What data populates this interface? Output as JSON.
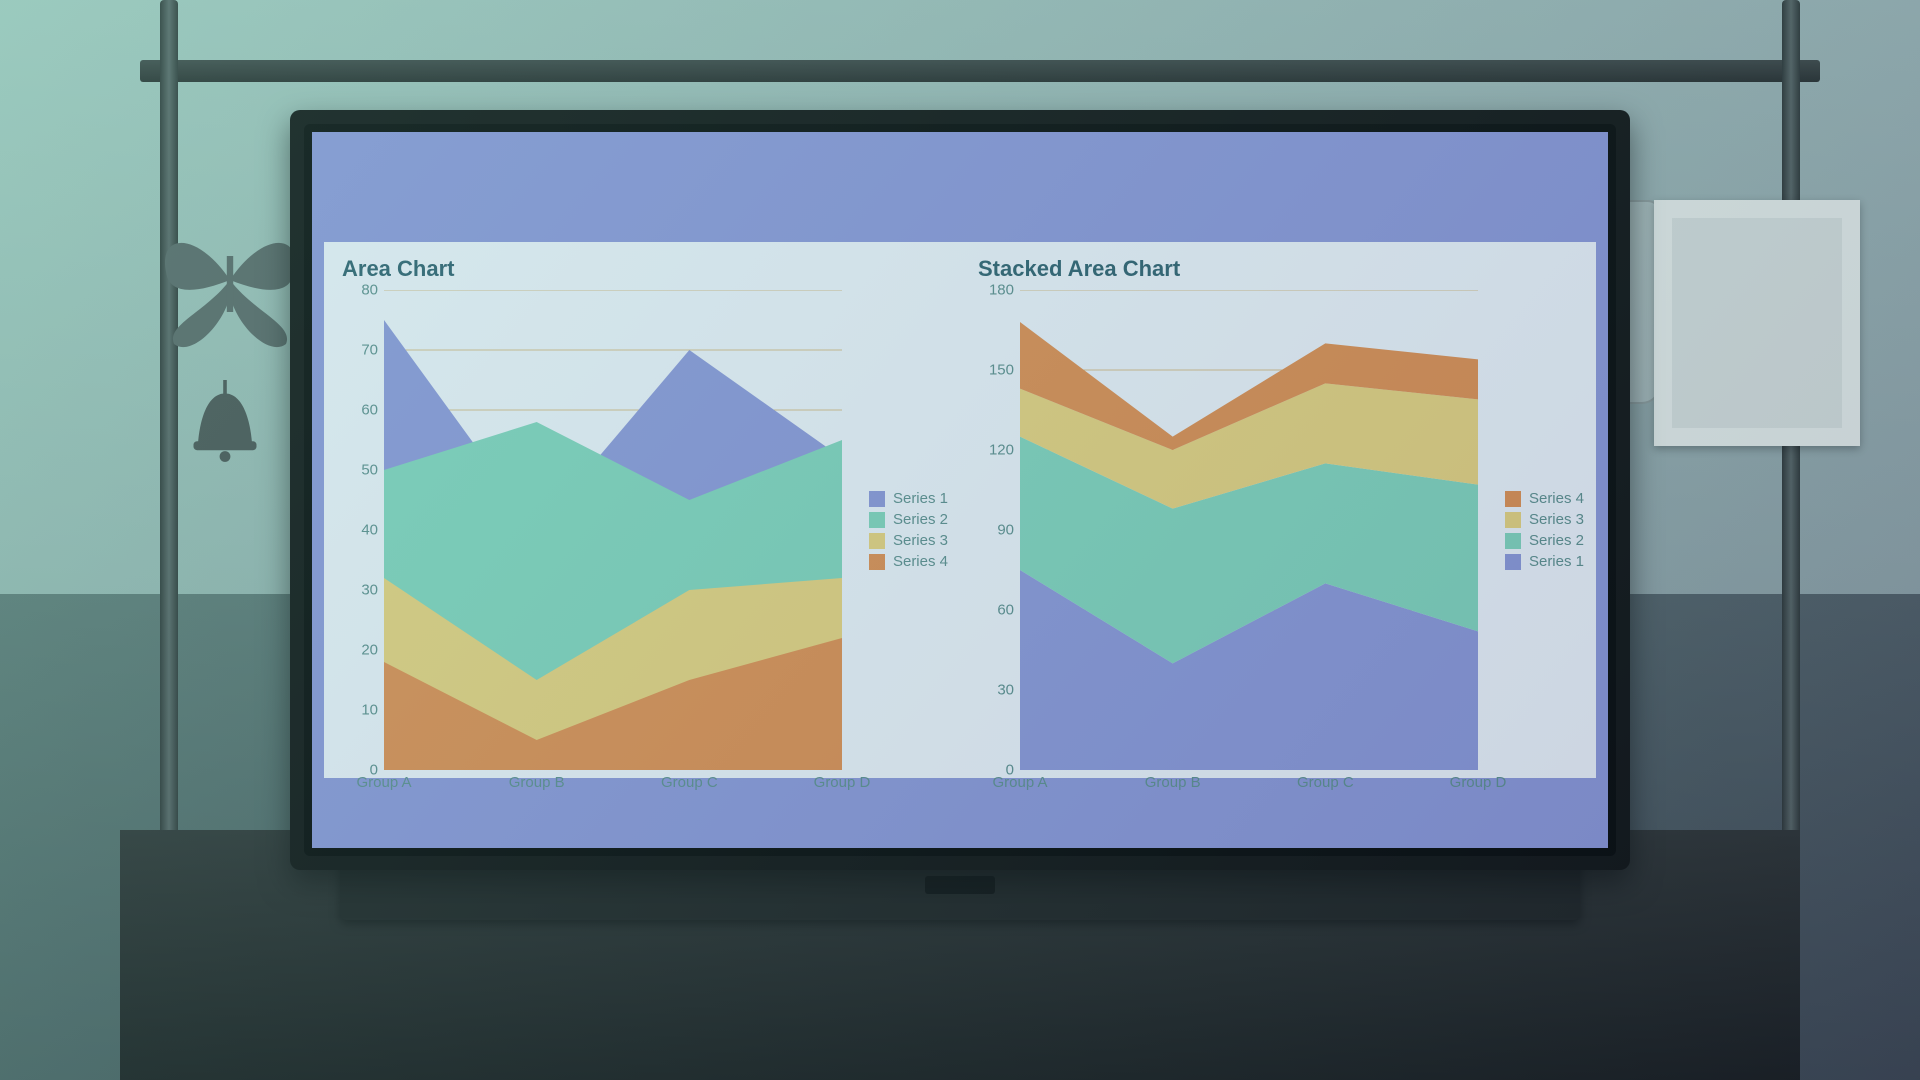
{
  "scene": {
    "room_gradient_top": "#b8c4c0",
    "room_gradient_bottom": "#3a3e3e",
    "tint_from": "rgba(130,220,200,.22)",
    "tint_to": "rgba(40,60,100,.18)"
  },
  "screen": {
    "background": "#8a93d8",
    "panel_background": "#eef1fa",
    "title_color": "#2a5a6a",
    "axis_text_color": "#5a8a8a",
    "grid_color": "#d8ba88",
    "title_fontsize": 22,
    "tick_fontsize": 15,
    "legend_fontsize": 15
  },
  "left_chart": {
    "type": "area",
    "title": "Area Chart",
    "categories": [
      "Group A",
      "Group B",
      "Group C",
      "Group D"
    ],
    "ylim": [
      0,
      80
    ],
    "ytick_step": 10,
    "series": [
      {
        "name": "Series 1",
        "color": "#8a93d8",
        "values": [
          75,
          40,
          70,
          52
        ]
      },
      {
        "name": "Series 2",
        "color": "#7fd1ba",
        "values": [
          50,
          58,
          45,
          55
        ]
      },
      {
        "name": "Series 3",
        "color": "#e8cf7a",
        "values": [
          32,
          15,
          30,
          32
        ]
      },
      {
        "name": "Series 4",
        "color": "#e08a4a",
        "values": [
          18,
          5,
          15,
          22
        ]
      }
    ],
    "legend_order": [
      "Series 1",
      "Series 2",
      "Series 3",
      "Series 4"
    ]
  },
  "right_chart": {
    "type": "stacked-area",
    "title": "Stacked Area Chart",
    "categories": [
      "Group A",
      "Group B",
      "Group C",
      "Group D"
    ],
    "ylim": [
      0,
      180
    ],
    "ytick_step": 30,
    "series": [
      {
        "name": "Series 1",
        "color": "#8a93d8",
        "values": [
          75,
          40,
          70,
          52
        ]
      },
      {
        "name": "Series 2",
        "color": "#7fd1ba",
        "values": [
          50,
          58,
          45,
          55
        ]
      },
      {
        "name": "Series 3",
        "color": "#e8cf7a",
        "values": [
          18,
          22,
          30,
          32
        ]
      },
      {
        "name": "Series 4",
        "color": "#e08a4a",
        "values": [
          25,
          5,
          15,
          15
        ]
      }
    ],
    "legend_order": [
      "Series 4",
      "Series 3",
      "Series 2",
      "Series 1"
    ]
  }
}
